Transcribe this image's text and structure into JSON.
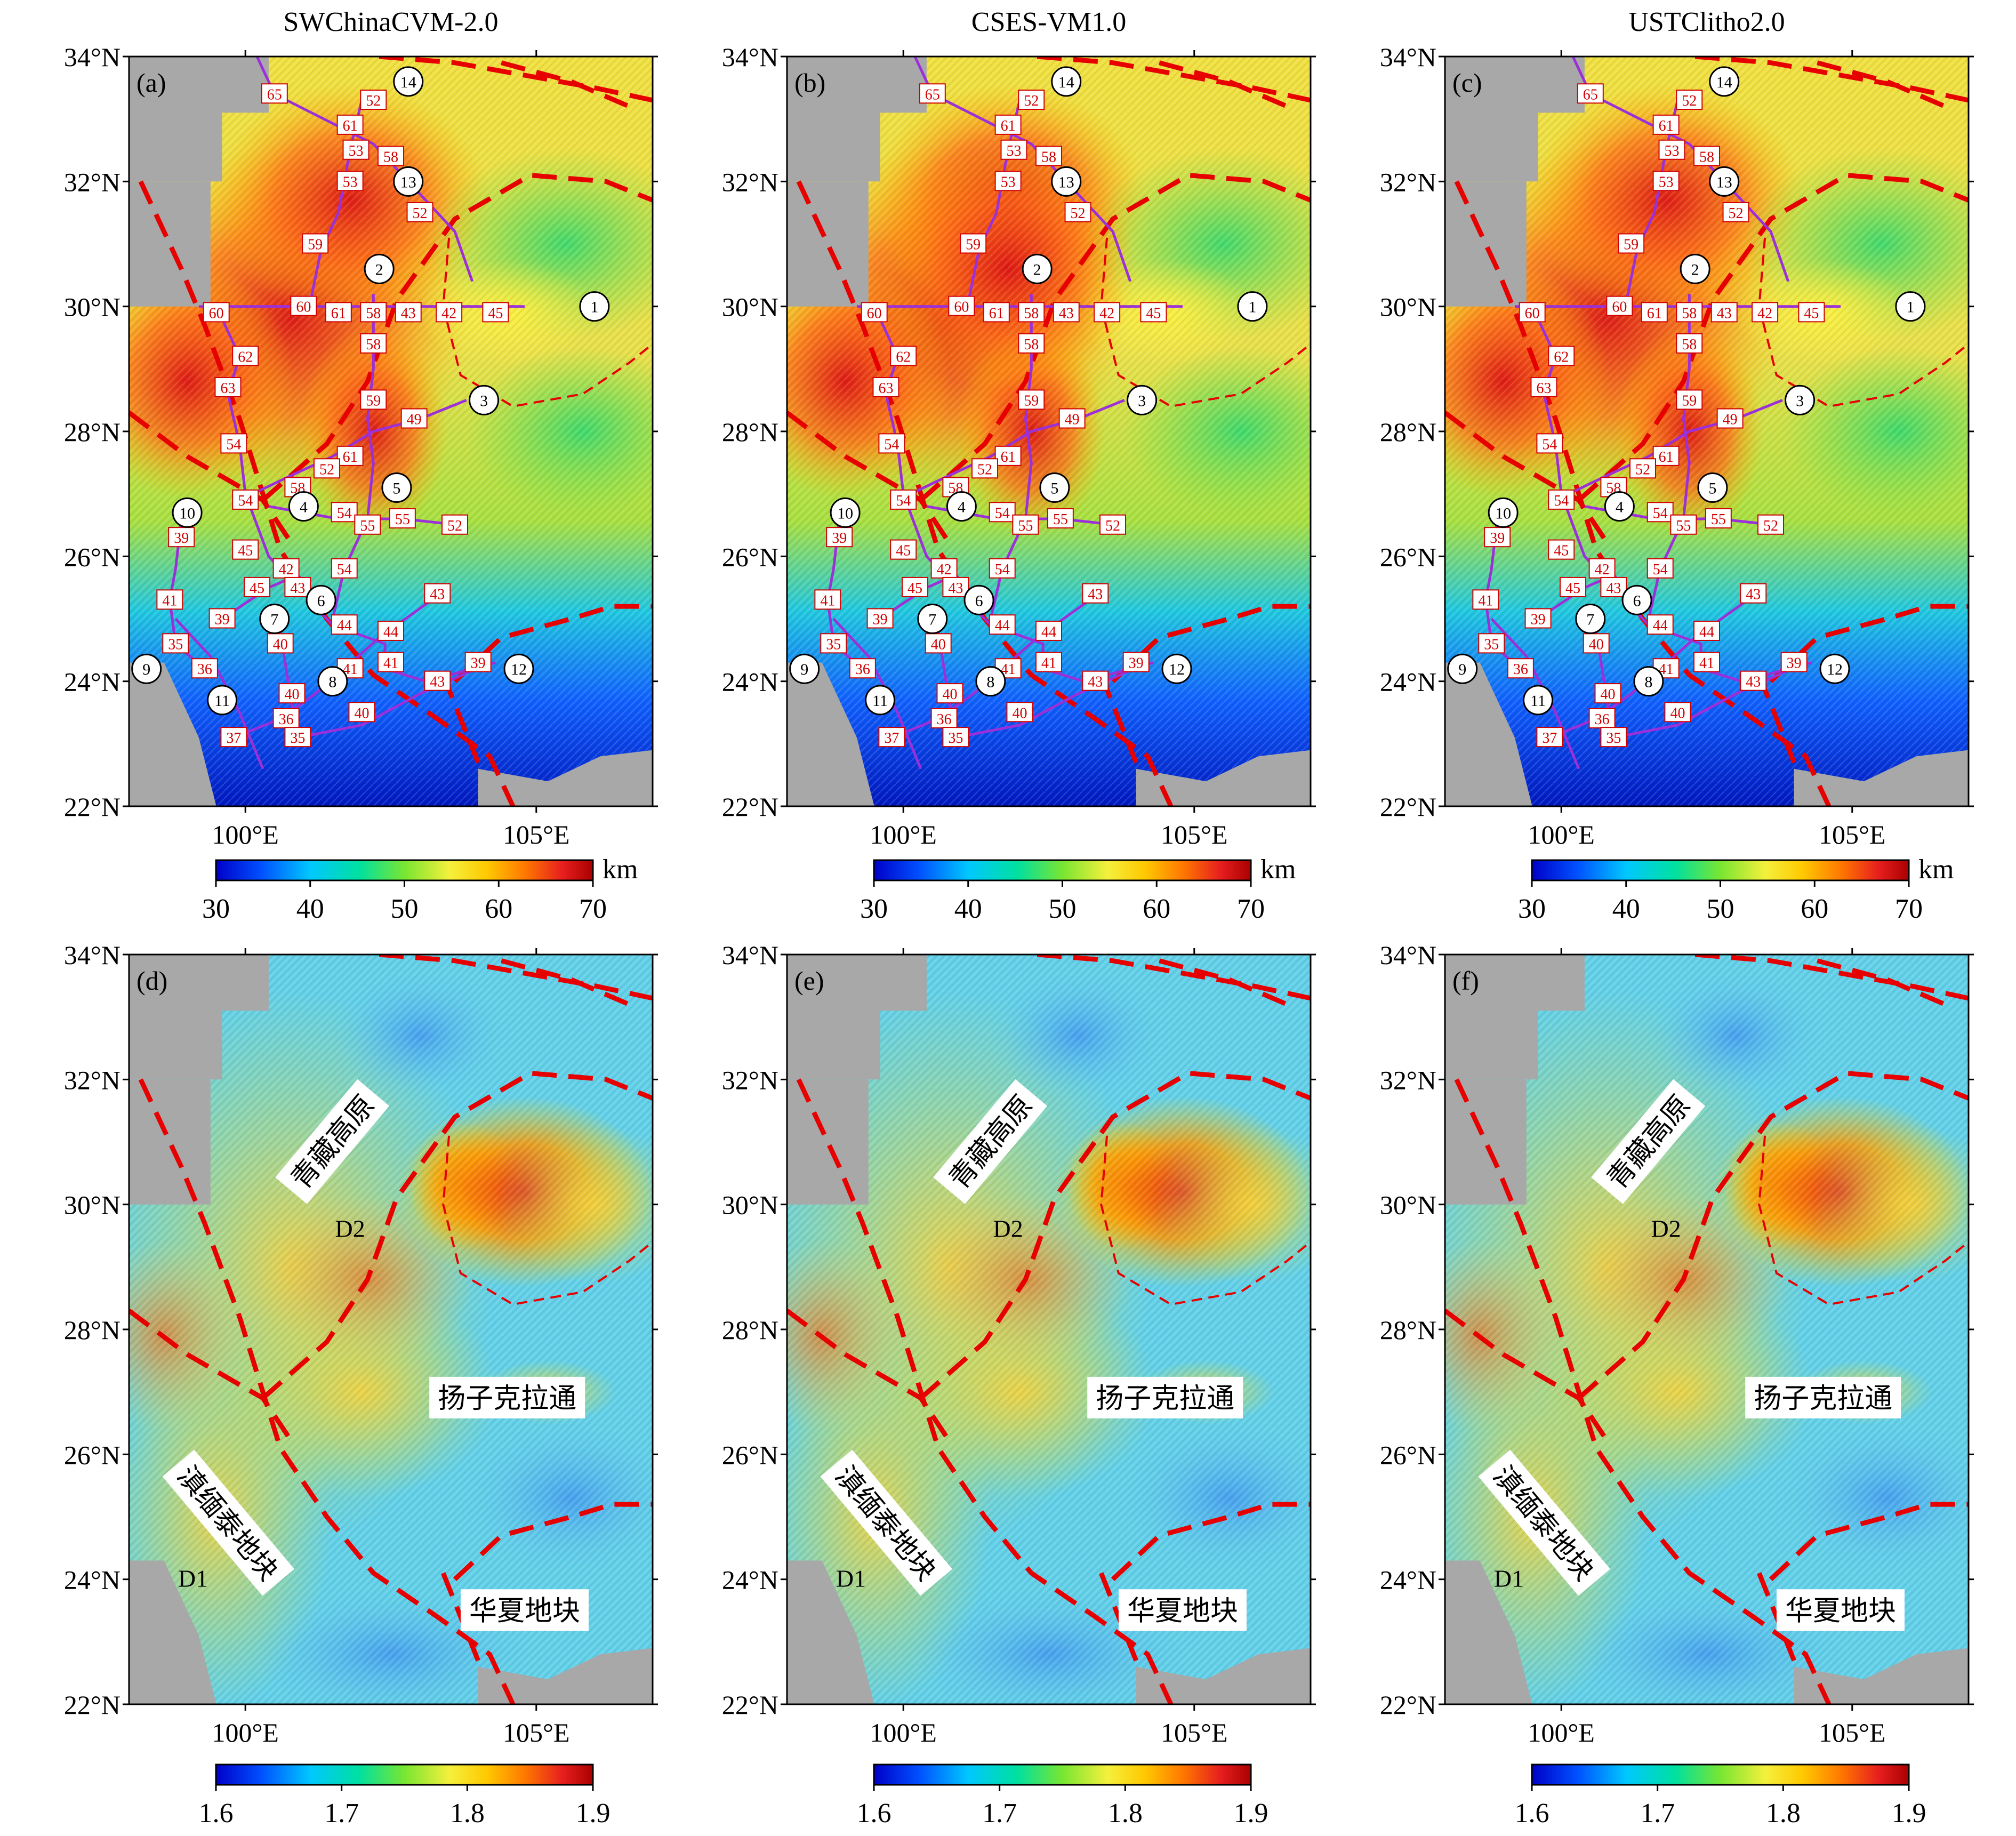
{
  "figure": {
    "column_titles": [
      "SWChinaCVM-2.0",
      "CSES-VM1.0",
      "USTClitho2.0"
    ],
    "panel_letters_top": [
      "(a)",
      "(b)",
      "(c)"
    ],
    "panel_letters_bottom": [
      "(d)",
      "(e)",
      "(f)"
    ],
    "lat_ticks": [
      "34°N",
      "32°N",
      "30°N",
      "28°N",
      "26°N",
      "24°N",
      "22°N"
    ],
    "lon_ticks": [
      "100°E",
      "105°E"
    ],
    "lon_range": [
      98.0,
      107.0
    ],
    "lat_range": [
      22.0,
      34.0
    ],
    "colorbar_top": {
      "unit": "km",
      "ticks": [
        "30",
        "40",
        "50",
        "60",
        "70"
      ],
      "range": [
        30,
        70
      ]
    },
    "colorbar_bottom": {
      "ticks": [
        "1.6",
        "1.7",
        "1.8",
        "1.9"
      ],
      "range": [
        1.6,
        1.9
      ]
    },
    "colormap": [
      "#0000c8",
      "#0050ff",
      "#00c8ff",
      "#00e0a0",
      "#78e632",
      "#f5f03c",
      "#ffc800",
      "#ff7800",
      "#e61e1e",
      "#aa0000"
    ],
    "terrain_mask_color": "#a8a8a8",
    "fault_color": "#e60000",
    "profile_color": "#9b30d9",
    "value_label_color": "#d00000"
  },
  "profile_markers": [
    {
      "id": "1",
      "lon": 106.0,
      "lat": 30.0
    },
    {
      "id": "2",
      "lon": 102.3,
      "lat": 30.6
    },
    {
      "id": "3",
      "lon": 104.1,
      "lat": 28.5
    },
    {
      "id": "4",
      "lon": 101.0,
      "lat": 26.8
    },
    {
      "id": "5",
      "lon": 102.6,
      "lat": 27.1
    },
    {
      "id": "6",
      "lon": 101.3,
      "lat": 25.3
    },
    {
      "id": "7",
      "lon": 100.5,
      "lat": 25.0
    },
    {
      "id": "8",
      "lon": 101.5,
      "lat": 24.0
    },
    {
      "id": "9",
      "lon": 98.3,
      "lat": 24.2
    },
    {
      "id": "10",
      "lon": 99.0,
      "lat": 26.7
    },
    {
      "id": "11",
      "lon": 99.6,
      "lat": 23.7
    },
    {
      "id": "12",
      "lon": 104.7,
      "lat": 24.2
    },
    {
      "id": "13",
      "lon": 102.8,
      "lat": 32.0
    },
    {
      "id": "14",
      "lon": 102.8,
      "lat": 33.6
    }
  ],
  "value_labels": [
    {
      "text": "65",
      "lon": 100.5,
      "lat": 33.4
    },
    {
      "text": "52",
      "lon": 102.2,
      "lat": 33.3
    },
    {
      "text": "61",
      "lon": 101.8,
      "lat": 32.9
    },
    {
      "text": "53",
      "lon": 101.9,
      "lat": 32.5
    },
    {
      "text": "58",
      "lon": 102.5,
      "lat": 32.4
    },
    {
      "text": "53",
      "lon": 101.8,
      "lat": 32.0
    },
    {
      "text": "52",
      "lon": 103.0,
      "lat": 31.5
    },
    {
      "text": "59",
      "lon": 101.2,
      "lat": 31.0
    },
    {
      "text": "60",
      "lon": 99.5,
      "lat": 29.9
    },
    {
      "text": "60",
      "lon": 101.0,
      "lat": 30.0
    },
    {
      "text": "61",
      "lon": 101.6,
      "lat": 29.9
    },
    {
      "text": "58",
      "lon": 102.2,
      "lat": 29.9
    },
    {
      "text": "43",
      "lon": 102.8,
      "lat": 29.9
    },
    {
      "text": "42",
      "lon": 103.5,
      "lat": 29.9
    },
    {
      "text": "45",
      "lon": 104.3,
      "lat": 29.9
    },
    {
      "text": "58",
      "lon": 102.2,
      "lat": 29.4
    },
    {
      "text": "62",
      "lon": 100.0,
      "lat": 29.2
    },
    {
      "text": "63",
      "lon": 99.7,
      "lat": 28.7
    },
    {
      "text": "59",
      "lon": 102.2,
      "lat": 28.5
    },
    {
      "text": "49",
      "lon": 102.9,
      "lat": 28.2
    },
    {
      "text": "54",
      "lon": 99.8,
      "lat": 27.8
    },
    {
      "text": "61",
      "lon": 101.8,
      "lat": 27.6
    },
    {
      "text": "52",
      "lon": 101.4,
      "lat": 27.4
    },
    {
      "text": "58",
      "lon": 100.9,
      "lat": 27.1
    },
    {
      "text": "54",
      "lon": 100.0,
      "lat": 26.9
    },
    {
      "text": "54",
      "lon": 101.7,
      "lat": 26.7
    },
    {
      "text": "55",
      "lon": 102.1,
      "lat": 26.5
    },
    {
      "text": "55",
      "lon": 102.7,
      "lat": 26.6
    },
    {
      "text": "52",
      "lon": 103.6,
      "lat": 26.5
    },
    {
      "text": "39",
      "lon": 98.9,
      "lat": 26.3
    },
    {
      "text": "45",
      "lon": 100.0,
      "lat": 26.1
    },
    {
      "text": "42",
      "lon": 100.7,
      "lat": 25.8
    },
    {
      "text": "54",
      "lon": 101.7,
      "lat": 25.8
    },
    {
      "text": "45",
      "lon": 100.2,
      "lat": 25.5
    },
    {
      "text": "43",
      "lon": 100.9,
      "lat": 25.5
    },
    {
      "text": "41",
      "lon": 98.7,
      "lat": 25.3
    },
    {
      "text": "43",
      "lon": 103.3,
      "lat": 25.4
    },
    {
      "text": "39",
      "lon": 99.6,
      "lat": 25.0
    },
    {
      "text": "44",
      "lon": 101.7,
      "lat": 24.9
    },
    {
      "text": "44",
      "lon": 102.5,
      "lat": 24.8
    },
    {
      "text": "35",
      "lon": 98.8,
      "lat": 24.6
    },
    {
      "text": "40",
      "lon": 100.6,
      "lat": 24.6
    },
    {
      "text": "41",
      "lon": 102.5,
      "lat": 24.3
    },
    {
      "text": "36",
      "lon": 99.3,
      "lat": 24.2
    },
    {
      "text": "41",
      "lon": 101.8,
      "lat": 24.2
    },
    {
      "text": "39",
      "lon": 104.0,
      "lat": 24.3
    },
    {
      "text": "43",
      "lon": 103.3,
      "lat": 24.0
    },
    {
      "text": "40",
      "lon": 100.8,
      "lat": 23.8
    },
    {
      "text": "36",
      "lon": 100.7,
      "lat": 23.4
    },
    {
      "text": "40",
      "lon": 102.0,
      "lat": 23.5
    },
    {
      "text": "37",
      "lon": 99.8,
      "lat": 23.1
    },
    {
      "text": "35",
      "lon": 100.9,
      "lat": 23.1
    }
  ],
  "region_labels": [
    {
      "text": "青藏高原",
      "lon": 101.5,
      "lat": 31.0,
      "rotate": -50
    },
    {
      "text": "扬子克拉通",
      "lon": 104.5,
      "lat": 26.9,
      "rotate": 0
    },
    {
      "text": "滇缅泰地块",
      "lon": 99.7,
      "lat": 24.9,
      "rotate": 50
    },
    {
      "text": "华夏地块",
      "lon": 104.8,
      "lat": 23.5,
      "rotate": 0
    },
    {
      "text": "D1",
      "lon": 99.1,
      "lat": 24.0,
      "rotate": 0
    },
    {
      "text": "D2",
      "lon": 101.8,
      "lat": 29.6,
      "rotate": 0
    }
  ]
}
